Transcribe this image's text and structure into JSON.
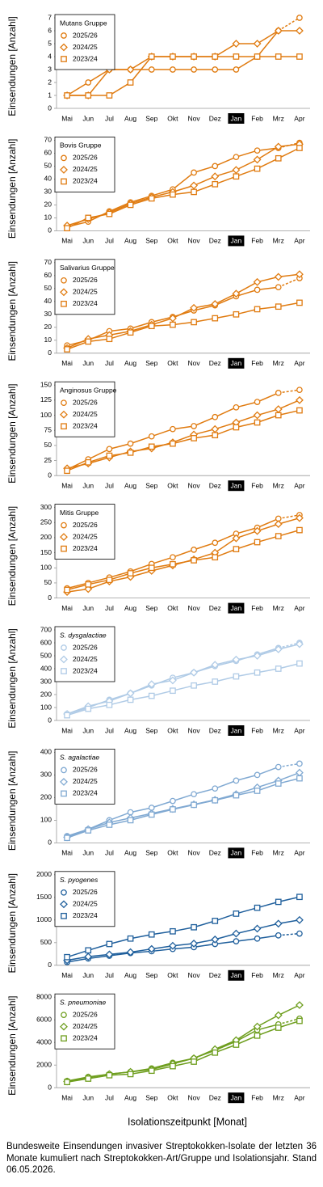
{
  "chart_data": [
    {
      "type": "line",
      "title": "Mutans Gruppe",
      "ylabel": "Einsendungen [Anzahl]",
      "categories": [
        "Mai",
        "Jun",
        "Jul",
        "Aug",
        "Sep",
        "Okt",
        "Nov",
        "Dez",
        "Jan",
        "Feb",
        "Mrz",
        "Apr"
      ],
      "highlight_category": "Jan",
      "ylim": [
        0,
        7
      ],
      "yticks": [
        0,
        1,
        2,
        3,
        4,
        5,
        6,
        7
      ],
      "series": [
        {
          "name": "2025/26",
          "color": "#e07b10",
          "marker": "circle",
          "dashed_last_segment": true,
          "values": [
            1,
            2,
            3,
            3,
            3,
            3,
            3,
            3,
            3,
            4,
            6,
            7
          ]
        },
        {
          "name": "2024/25",
          "color": "#e07b10",
          "marker": "diamond",
          "values": [
            1,
            1,
            3,
            3,
            4,
            4,
            4,
            4,
            5,
            5,
            6,
            6
          ]
        },
        {
          "name": "2023/24",
          "color": "#e07b10",
          "marker": "square",
          "values": [
            1,
            1,
            1,
            2,
            4,
            4,
            4,
            4,
            4,
            4,
            4,
            4
          ]
        }
      ]
    },
    {
      "type": "line",
      "title": "Bovis Gruppe",
      "ylabel": "Einsendungen [Anzahl]",
      "categories": [
        "Mai",
        "Jun",
        "Jul",
        "Aug",
        "Sep",
        "Okt",
        "Nov",
        "Dez",
        "Jan",
        "Feb",
        "Mrz",
        "Apr"
      ],
      "highlight_category": "Jan",
      "ylim": [
        0,
        70
      ],
      "yticks": [
        0,
        10,
        20,
        30,
        40,
        50,
        60,
        70
      ],
      "series": [
        {
          "name": "2025/26",
          "color": "#e07b10",
          "marker": "circle",
          "dashed_last_segment": true,
          "values": [
            3,
            7,
            15,
            22,
            27,
            32,
            45,
            50,
            57,
            62,
            64,
            68
          ]
        },
        {
          "name": "2024/25",
          "color": "#e07b10",
          "marker": "diamond",
          "values": [
            4,
            9,
            14,
            21,
            26,
            30,
            35,
            42,
            47,
            55,
            65,
            67
          ]
        },
        {
          "name": "2023/24",
          "color": "#e07b10",
          "marker": "square",
          "values": [
            2,
            10,
            13,
            20,
            25,
            28,
            30,
            36,
            42,
            48,
            56,
            64
          ]
        }
      ]
    },
    {
      "type": "line",
      "title": "Salivarius Gruppe",
      "ylabel": "Einsendungen [Anzahl]",
      "categories": [
        "Mai",
        "Jun",
        "Jul",
        "Aug",
        "Sep",
        "Okt",
        "Nov",
        "Dez",
        "Jan",
        "Feb",
        "Mrz",
        "Apr"
      ],
      "highlight_category": "Jan",
      "ylim": [
        0,
        70
      ],
      "yticks": [
        0,
        10,
        20,
        30,
        40,
        50,
        60,
        70
      ],
      "series": [
        {
          "name": "2025/26",
          "color": "#e07b10",
          "marker": "circle",
          "dashed_last_segment": true,
          "values": [
            6,
            10,
            17,
            19,
            24,
            28,
            33,
            37,
            44,
            49,
            51,
            58
          ]
        },
        {
          "name": "2024/25",
          "color": "#e07b10",
          "marker": "diamond",
          "values": [
            4,
            11,
            14,
            17,
            22,
            27,
            35,
            38,
            46,
            55,
            59,
            61
          ]
        },
        {
          "name": "2023/24",
          "color": "#e07b10",
          "marker": "square",
          "values": [
            3,
            9,
            11,
            16,
            21,
            22,
            24,
            27,
            30,
            34,
            36,
            39
          ]
        }
      ]
    },
    {
      "type": "line",
      "title": "Anginosus Gruppe",
      "ylabel": "Einsendungen [Anzahl]",
      "categories": [
        "Mai",
        "Jun",
        "Jul",
        "Aug",
        "Sep",
        "Okt",
        "Nov",
        "Dez",
        "Jan",
        "Feb",
        "Mrz",
        "Apr"
      ],
      "highlight_category": "Jan",
      "ylim": [
        0,
        150
      ],
      "yticks": [
        0,
        25,
        50,
        75,
        100,
        125,
        150
      ],
      "series": [
        {
          "name": "2025/26",
          "color": "#e07b10",
          "marker": "circle",
          "dashed_last_segment": true,
          "values": [
            10,
            27,
            44,
            53,
            65,
            77,
            82,
            97,
            113,
            122,
            137,
            142
          ]
        },
        {
          "name": "2024/25",
          "color": "#e07b10",
          "marker": "diamond",
          "values": [
            12,
            20,
            30,
            40,
            45,
            55,
            68,
            77,
            88,
            100,
            110,
            125
          ]
        },
        {
          "name": "2023/24",
          "color": "#e07b10",
          "marker": "square",
          "values": [
            8,
            22,
            33,
            38,
            48,
            53,
            62,
            67,
            80,
            88,
            100,
            108
          ]
        }
      ]
    },
    {
      "type": "line",
      "title": "Mitis Gruppe",
      "ylabel": "Einsendungen [Anzahl]",
      "categories": [
        "Mai",
        "Jun",
        "Jul",
        "Aug",
        "Sep",
        "Okt",
        "Nov",
        "Dez",
        "Jan",
        "Feb",
        "Mrz",
        "Apr"
      ],
      "highlight_category": "Jan",
      "ylim": [
        0,
        300
      ],
      "yticks": [
        0,
        50,
        100,
        150,
        200,
        250,
        300
      ],
      "series": [
        {
          "name": "2025/26",
          "color": "#e07b10",
          "marker": "circle",
          "dashed_last_segment": true,
          "values": [
            32,
            50,
            68,
            88,
            113,
            135,
            160,
            183,
            213,
            233,
            263,
            275
          ]
        },
        {
          "name": "2024/25",
          "color": "#e07b10",
          "marker": "diamond",
          "values": [
            20,
            30,
            55,
            70,
            90,
            108,
            128,
            150,
            198,
            222,
            245,
            265
          ]
        },
        {
          "name": "2023/24",
          "color": "#e07b10",
          "marker": "square",
          "values": [
            27,
            45,
            60,
            82,
            100,
            112,
            125,
            135,
            162,
            185,
            205,
            225
          ]
        }
      ]
    },
    {
      "type": "line",
      "title": "S. dysgalactiae",
      "title_italic": true,
      "ylabel": "Einsendungen [Anzahl]",
      "categories": [
        "Mai",
        "Jun",
        "Jul",
        "Aug",
        "Sep",
        "Okt",
        "Nov",
        "Dez",
        "Jan",
        "Feb",
        "Mrz",
        "Apr"
      ],
      "highlight_category": "Jan",
      "ylim": [
        0,
        700
      ],
      "yticks": [
        0,
        100,
        200,
        300,
        400,
        500,
        600,
        700
      ],
      "series": [
        {
          "name": "2025/26",
          "color": "#b0cbe6",
          "marker": "circle",
          "dashed_last_segment": true,
          "values": [
            50,
            100,
            160,
            210,
            270,
            330,
            370,
            420,
            460,
            510,
            560,
            600
          ]
        },
        {
          "name": "2024/25",
          "color": "#b0cbe6",
          "marker": "diamond",
          "values": [
            50,
            110,
            150,
            210,
            280,
            310,
            370,
            430,
            470,
            500,
            550,
            590
          ]
        },
        {
          "name": "2023/24",
          "color": "#b0cbe6",
          "marker": "square",
          "values": [
            40,
            90,
            120,
            160,
            190,
            230,
            270,
            300,
            340,
            370,
            400,
            440
          ]
        }
      ]
    },
    {
      "type": "line",
      "title": "S. agalactiae",
      "title_italic": true,
      "ylabel": "Einsendungen [Anzahl]",
      "categories": [
        "Mai",
        "Jun",
        "Jul",
        "Aug",
        "Sep",
        "Okt",
        "Nov",
        "Dez",
        "Jan",
        "Feb",
        "Mrz",
        "Apr"
      ],
      "highlight_category": "Jan",
      "ylim": [
        0,
        400
      ],
      "yticks": [
        0,
        100,
        200,
        300,
        400
      ],
      "series": [
        {
          "name": "2025/26",
          "color": "#80a9d2",
          "marker": "circle",
          "dashed_last_segment": true,
          "values": [
            30,
            60,
            100,
            135,
            155,
            185,
            215,
            240,
            275,
            300,
            335,
            350
          ]
        },
        {
          "name": "2024/25",
          "color": "#80a9d2",
          "marker": "diamond",
          "values": [
            25,
            60,
            90,
            110,
            130,
            150,
            170,
            190,
            215,
            245,
            275,
            310
          ]
        },
        {
          "name": "2023/24",
          "color": "#80a9d2",
          "marker": "square",
          "values": [
            22,
            55,
            80,
            100,
            125,
            148,
            168,
            188,
            210,
            230,
            262,
            285
          ]
        }
      ]
    },
    {
      "type": "line",
      "title": "S. pyogenes",
      "title_italic": true,
      "ylabel": "Einsendungen [Anzahl]",
      "categories": [
        "Mai",
        "Jun",
        "Jul",
        "Aug",
        "Sep",
        "Okt",
        "Nov",
        "Dez",
        "Jan",
        "Feb",
        "Mrz",
        "Apr"
      ],
      "highlight_category": "Jan",
      "ylim": [
        0,
        2000
      ],
      "yticks": [
        0,
        500,
        1000,
        1500,
        2000
      ],
      "series": [
        {
          "name": "2025/26",
          "color": "#1f5f9c",
          "marker": "circle",
          "dashed_last_segment": true,
          "values": [
            70,
            150,
            210,
            270,
            310,
            360,
            400,
            470,
            530,
            590,
            660,
            700
          ]
        },
        {
          "name": "2024/25",
          "color": "#1f5f9c",
          "marker": "diamond",
          "values": [
            110,
            190,
            240,
            290,
            360,
            430,
            480,
            570,
            700,
            810,
            920,
            1000
          ]
        },
        {
          "name": "2023/24",
          "color": "#1f5f9c",
          "marker": "square",
          "values": [
            180,
            330,
            470,
            590,
            680,
            750,
            840,
            980,
            1140,
            1270,
            1400,
            1510
          ]
        }
      ]
    },
    {
      "type": "line",
      "title": "S. pneumoniae",
      "title_italic": true,
      "ylabel": "Einsendungen [Anzahl]",
      "categories": [
        "Mai",
        "Jun",
        "Jul",
        "Aug",
        "Sep",
        "Okt",
        "Nov",
        "Dez",
        "Jan",
        "Feb",
        "Mrz",
        "Apr"
      ],
      "highlight_category": "Jan",
      "ylim": [
        0,
        8000
      ],
      "yticks": [
        0,
        2000,
        4000,
        6000,
        8000
      ],
      "series": [
        {
          "name": "2025/26",
          "color": "#6e9e1e",
          "marker": "circle",
          "dashed_last_segment": true,
          "values": [
            600,
            950,
            1200,
            1400,
            1700,
            2200,
            2600,
            3300,
            4100,
            5100,
            5600,
            6100
          ]
        },
        {
          "name": "2024/25",
          "color": "#6e9e1e",
          "marker": "diamond",
          "values": [
            550,
            900,
            1200,
            1400,
            1600,
            2100,
            2600,
            3400,
            4200,
            5400,
            6400,
            7300
          ]
        },
        {
          "name": "2023/24",
          "color": "#6e9e1e",
          "marker": "square",
          "values": [
            500,
            800,
            1100,
            1200,
            1500,
            1900,
            2300,
            3100,
            3800,
            4600,
            5300,
            5900
          ]
        }
      ]
    }
  ],
  "xlabel": "Isolationszeitpunkt [Monat]",
  "caption": "Bundesweite Einsendungen invasiver Streptokokken-Isolate der letzten 36 Monate kumuliert nach Streptokokken-Art/Gruppe und Isolationsjahr. Stand 06.05.2026."
}
